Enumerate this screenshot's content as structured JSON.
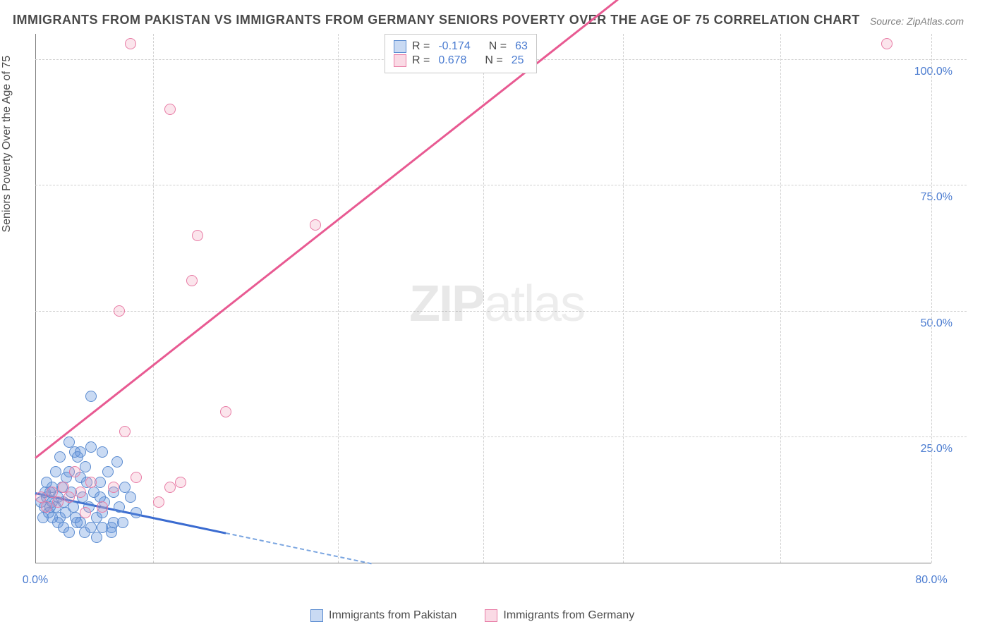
{
  "chart": {
    "title": "IMMIGRANTS FROM PAKISTAN VS IMMIGRANTS FROM GERMANY SENIORS POVERTY OVER THE AGE OF 75 CORRELATION CHART",
    "source": "Source: ZipAtlas.com",
    "y_label": "Seniors Poverty Over the Age of 75",
    "watermark_zip": "ZIP",
    "watermark_atlas": "atlas",
    "type": "scatter",
    "background_color": "#ffffff",
    "grid_color": "#d0d0d0",
    "axis_color": "#808080",
    "title_color": "#4a4a4a",
    "tick_label_color": "#4a7bd0",
    "title_fontsize": 18,
    "label_fontsize": 16,
    "tick_fontsize": 16,
    "xlim": [
      0,
      80
    ],
    "ylim": [
      0,
      105
    ],
    "x_ticks": [
      0,
      80
    ],
    "x_tick_labels": [
      "0.0%",
      "80.0%"
    ],
    "y_ticks": [
      25,
      50,
      75,
      100
    ],
    "y_tick_labels": [
      "25.0%",
      "50.0%",
      "75.0%",
      "100.0%"
    ],
    "x_grid_positions": [
      10.5,
      27,
      40,
      52.5,
      66.5,
      80
    ],
    "marker_radius": 8,
    "series": [
      {
        "name": "Immigrants from Pakistan",
        "color_fill": "rgba(100,150,220,0.35)",
        "color_stroke": "#5a8bd0",
        "r": -0.174,
        "n": 63,
        "trend": {
          "x0": 0,
          "y0": 14,
          "x1": 30,
          "y1": 0,
          "solid_until_x": 17,
          "color": "#3a6bd0",
          "dash_color": "#7aa5e0"
        },
        "points": [
          [
            0.5,
            12
          ],
          [
            0.8,
            11
          ],
          [
            1.0,
            13
          ],
          [
            1.2,
            10
          ],
          [
            1.3,
            14
          ],
          [
            1.5,
            12
          ],
          [
            1.8,
            11
          ],
          [
            2.0,
            13
          ],
          [
            2.2,
            9
          ],
          [
            2.4,
            15
          ],
          [
            2.5,
            12
          ],
          [
            2.7,
            10
          ],
          [
            3.0,
            18
          ],
          [
            3.2,
            14
          ],
          [
            3.4,
            11
          ],
          [
            3.5,
            22
          ],
          [
            3.7,
            8
          ],
          [
            4.0,
            17
          ],
          [
            4.2,
            13
          ],
          [
            4.5,
            19
          ],
          [
            4.8,
            11
          ],
          [
            5.0,
            23
          ],
          [
            5.2,
            14
          ],
          [
            5.5,
            9
          ],
          [
            5.8,
            16
          ],
          [
            6.0,
            22
          ],
          [
            6.2,
            12
          ],
          [
            6.5,
            18
          ],
          [
            6.8,
            7
          ],
          [
            7.0,
            14
          ],
          [
            7.3,
            20
          ],
          [
            7.5,
            11
          ],
          [
            7.8,
            8
          ],
          [
            8.0,
            15
          ],
          [
            5.0,
            33
          ],
          [
            4.0,
            22
          ],
          [
            3.0,
            24
          ],
          [
            6.0,
            7
          ],
          [
            8.5,
            13
          ],
          [
            9.0,
            10
          ],
          [
            2.8,
            17
          ],
          [
            3.6,
            9
          ],
          [
            4.4,
            6
          ],
          [
            5.5,
            5
          ],
          [
            6.8,
            6
          ],
          [
            1.5,
            15
          ],
          [
            2.0,
            8
          ],
          [
            1.0,
            16
          ],
          [
            0.7,
            9
          ],
          [
            1.8,
            18
          ],
          [
            2.5,
            7
          ],
          [
            3.0,
            6
          ],
          [
            4.0,
            8
          ],
          [
            5.0,
            7
          ],
          [
            6.0,
            10
          ],
          [
            7.0,
            8
          ],
          [
            3.8,
            21
          ],
          [
            4.6,
            16
          ],
          [
            5.8,
            13
          ],
          [
            2.2,
            21
          ],
          [
            1.5,
            9
          ],
          [
            0.9,
            14
          ],
          [
            1.3,
            11
          ]
        ]
      },
      {
        "name": "Immigrants from Germany",
        "color_fill": "rgba(240,150,180,0.25)",
        "color_stroke": "#e87ba5",
        "r": 0.678,
        "n": 25,
        "trend": {
          "x0": 0,
          "y0": 21,
          "x1": 52,
          "y1": 112,
          "color": "#e85a92"
        },
        "points": [
          [
            0.5,
            13
          ],
          [
            1.0,
            11
          ],
          [
            1.5,
            14
          ],
          [
            2.0,
            12
          ],
          [
            2.5,
            15
          ],
          [
            3.0,
            13
          ],
          [
            4.0,
            14
          ],
          [
            5.0,
            16
          ],
          [
            6.0,
            11
          ],
          [
            7.0,
            15
          ],
          [
            8.0,
            26
          ],
          [
            9.0,
            17
          ],
          [
            11.0,
            12
          ],
          [
            12.0,
            15
          ],
          [
            13.0,
            16
          ],
          [
            7.5,
            50
          ],
          [
            8.5,
            103
          ],
          [
            12.0,
            90
          ],
          [
            14.0,
            56
          ],
          [
            17.0,
            30
          ],
          [
            25.0,
            67
          ],
          [
            14.5,
            65
          ],
          [
            76.0,
            103
          ],
          [
            4.5,
            10
          ],
          [
            3.5,
            18
          ]
        ]
      }
    ],
    "legend_stats": {
      "r_label": "R =",
      "n_label": "N =",
      "rows": [
        {
          "swatch": "blue",
          "r": "-0.174",
          "n": "63"
        },
        {
          "swatch": "pink",
          "r": "0.678",
          "n": "25"
        }
      ]
    },
    "bottom_legend": [
      {
        "swatch": "blue",
        "label": "Immigrants from Pakistan"
      },
      {
        "swatch": "pink",
        "label": "Immigrants from Germany"
      }
    ]
  }
}
